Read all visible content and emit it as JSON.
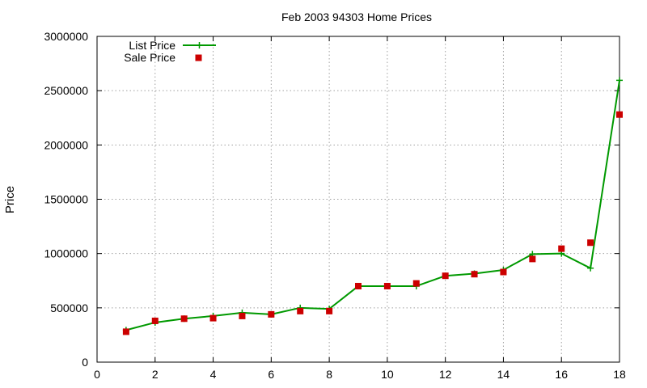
{
  "chart_data": {
    "type": "line",
    "title": "Feb 2003 94303 Home Prices",
    "xlabel": "",
    "ylabel": "Price",
    "xlim": [
      0,
      18
    ],
    "ylim": [
      0,
      3000000
    ],
    "xticks": [
      0,
      2,
      4,
      6,
      8,
      10,
      12,
      14,
      16,
      18
    ],
    "yticks": [
      0,
      500000,
      1000000,
      1500000,
      2000000,
      2500000,
      3000000
    ],
    "grid": true,
    "legend_position": "top-left",
    "series": [
      {
        "name": "List Price",
        "style": "line-with-plus-markers",
        "color": "#009900",
        "x": [
          1,
          2,
          3,
          4,
          5,
          6,
          7,
          8,
          9,
          10,
          11,
          12,
          13,
          14,
          15,
          16,
          17,
          18
        ],
        "values": [
          295000,
          365000,
          400000,
          425000,
          455000,
          440000,
          500000,
          490000,
          700000,
          700000,
          700000,
          795000,
          815000,
          849000,
          995000,
          1000000,
          865000,
          2595000
        ]
      },
      {
        "name": "Sale Price",
        "style": "square-markers",
        "color": "#cc0000",
        "x": [
          1,
          2,
          3,
          4,
          5,
          6,
          7,
          8,
          9,
          10,
          11,
          12,
          13,
          14,
          15,
          16,
          17,
          18
        ],
        "values": [
          280000,
          380000,
          400000,
          405000,
          425000,
          440000,
          470000,
          470000,
          700000,
          700000,
          725000,
          795000,
          810000,
          830000,
          950000,
          1045000,
          1100000,
          2280000
        ]
      }
    ]
  }
}
